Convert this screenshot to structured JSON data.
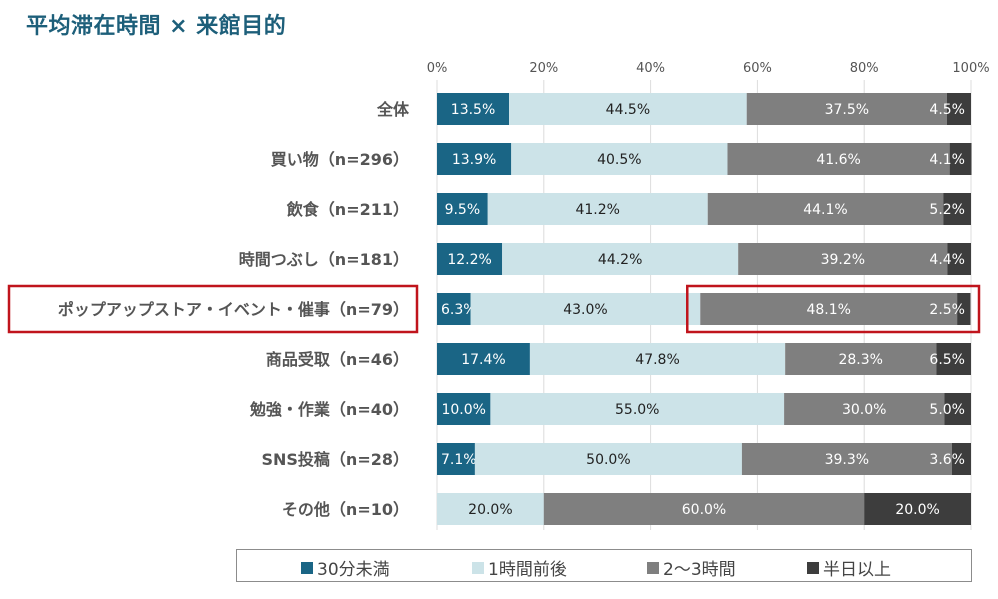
{
  "chart_data": {
    "type": "bar",
    "orientation": "horizontal",
    "stacked": true,
    "title": "平均滞在時間 × 来館目的",
    "xlabel": "",
    "ylabel": "",
    "xlim": [
      0,
      100
    ],
    "x_ticks": [
      "0%",
      "20%",
      "40%",
      "60%",
      "80%",
      "100%"
    ],
    "x_tick_values": [
      0,
      20,
      40,
      60,
      80,
      100
    ],
    "grid": true,
    "legend_position": "bottom",
    "categories": [
      "全体",
      "買い物（n=296）",
      "飲食（n=211）",
      "時間つぶし（n=181）",
      "ポップアップストア・イベント・催事（n=79）",
      "商品受取（n=46）",
      "勉強・作業（n=40）",
      "SNS投稿（n=28）",
      "その他（n=10）"
    ],
    "series": [
      {
        "name": "30分未満",
        "color": "#1a6585",
        "label_color": "#ffffff",
        "values": [
          13.5,
          13.9,
          9.5,
          12.2,
          6.3,
          17.4,
          10.0,
          7.1,
          0
        ],
        "labels": [
          "13.5%",
          "13.9%",
          "9.5%",
          "12.2%",
          "6.3%",
          "17.4%",
          "10.0%",
          "7.1%",
          ""
        ]
      },
      {
        "name": "1時間前後",
        "color": "#cce3e8",
        "label_color": "#222222",
        "values": [
          44.5,
          40.5,
          41.2,
          44.2,
          43.0,
          47.8,
          55.0,
          50.0,
          20.0
        ],
        "labels": [
          "44.5%",
          "40.5%",
          "41.2%",
          "44.2%",
          "43.0%",
          "47.8%",
          "55.0%",
          "50.0%",
          "20.0%"
        ]
      },
      {
        "name": "2〜3時間",
        "color": "#7f7f7f",
        "label_color": "#ffffff",
        "values": [
          37.5,
          41.6,
          44.1,
          39.2,
          48.1,
          28.3,
          30.0,
          39.3,
          60.0
        ],
        "labels": [
          "37.5%",
          "41.6%",
          "44.1%",
          "39.2%",
          "48.1%",
          "28.3%",
          "30.0%",
          "39.3%",
          "60.0%"
        ]
      },
      {
        "name": "半日以上",
        "color": "#3d3d3d",
        "label_color": "#ffffff",
        "values": [
          4.5,
          4.1,
          5.2,
          4.4,
          2.5,
          6.5,
          5.0,
          3.6,
          20.0
        ],
        "labels": [
          "4.5%",
          "4.1%",
          "5.2%",
          "4.4%",
          "2.5%",
          "6.5%",
          "5.0%",
          "3.6%",
          "20.0%"
        ]
      }
    ],
    "annotations": [
      {
        "type": "highlight-box",
        "target": "category-label",
        "category_index": 4,
        "color": "#c0141c"
      },
      {
        "type": "highlight-box",
        "target": "segments",
        "category_index": 4,
        "series": [
          "2〜3時間",
          "半日以上"
        ],
        "color": "#c0141c"
      }
    ]
  },
  "legend": {
    "items": [
      {
        "label": "30分未満",
        "color": "#1a6585"
      },
      {
        "label": "1時間前後",
        "color": "#cce3e8"
      },
      {
        "label": "2〜3時間",
        "color": "#7f7f7f"
      },
      {
        "label": "半日以上",
        "color": "#3d3d3d"
      }
    ]
  }
}
